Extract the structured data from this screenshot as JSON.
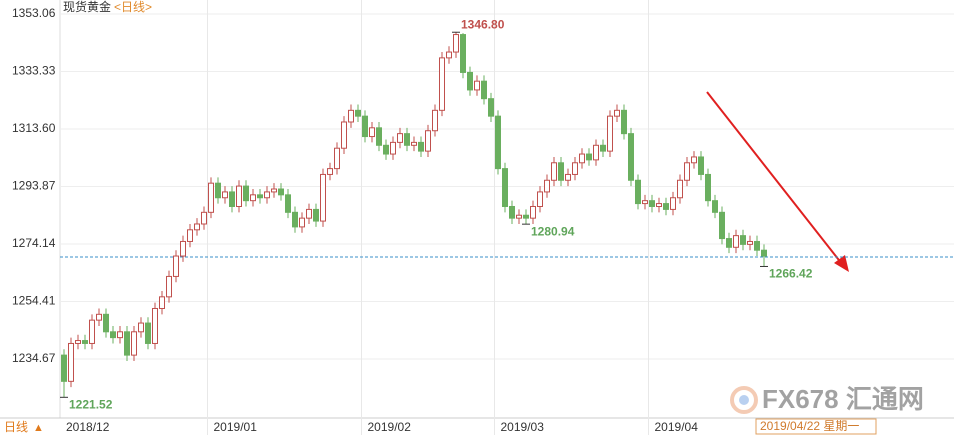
{
  "chart_data": {
    "type": "candlestick",
    "title": "现货黄金",
    "subtitle": "<日线>",
    "period_label": "日线",
    "period_icon": "▲",
    "watermark": "FX678 汇通网",
    "cursor_label": "2019/04/22 星期一",
    "categories": [
      "2018/12",
      null,
      null,
      null,
      null,
      null,
      null,
      null,
      null,
      null,
      null,
      null,
      null,
      null,
      null,
      null,
      null,
      null,
      null,
      null,
      null,
      "2019/01",
      null,
      null,
      null,
      null,
      null,
      null,
      null,
      null,
      null,
      null,
      null,
      null,
      null,
      null,
      null,
      null,
      null,
      null,
      null,
      null,
      null,
      "2019/02",
      null,
      null,
      null,
      null,
      null,
      null,
      null,
      null,
      null,
      null,
      null,
      null,
      null,
      null,
      null,
      null,
      null,
      null,
      "2019/03",
      null,
      null,
      null,
      null,
      null,
      null,
      null,
      null,
      null,
      null,
      null,
      null,
      null,
      null,
      null,
      null,
      null,
      null,
      null,
      null,
      null,
      "2019/04",
      null,
      null,
      null,
      null,
      null,
      null,
      null,
      null,
      null,
      null,
      null,
      null,
      null,
      null,
      null,
      null
    ],
    "open": [
      1236,
      1227,
      1240,
      1241,
      1240,
      1248,
      1250,
      1244,
      1242,
      1244,
      1236,
      1244,
      1247,
      1240,
      1252,
      1256,
      1263,
      1270,
      1275,
      1279,
      1281,
      1285,
      1295,
      1290,
      1292,
      1287,
      1294,
      1289,
      1291,
      1290,
      1292,
      1293,
      1291,
      1285,
      1280,
      1283,
      1286,
      1282,
      1298,
      1300,
      1307,
      1316,
      1320,
      1318,
      1311,
      1314,
      1308,
      1305,
      1309,
      1312,
      1308,
      1309,
      1306,
      1313,
      1320,
      1338,
      1340,
      1346,
      1333,
      1327,
      1330,
      1324,
      1318,
      1300,
      1287,
      1283,
      1284,
      1283,
      1287,
      1292,
      1296,
      1302,
      1296,
      1298,
      1302,
      1305,
      1303,
      1308,
      1306,
      1318,
      1320,
      1312,
      1296,
      1288,
      1289,
      1287,
      1288,
      1286,
      1290,
      1296,
      1302,
      1304,
      1298,
      1289,
      1285,
      1276,
      1273,
      1277,
      1274,
      1275,
      1272
    ],
    "high": [
      1238,
      1242,
      1243,
      1243,
      1250,
      1252,
      1252,
      1246,
      1246,
      1246,
      1246,
      1249,
      1249,
      1254,
      1258,
      1265,
      1272,
      1277,
      1281,
      1283,
      1287,
      1297,
      1297,
      1294,
      1294,
      1296,
      1296,
      1293,
      1293,
      1294,
      1295,
      1295,
      1293,
      1287,
      1285,
      1288,
      1288,
      1300,
      1302,
      1309,
      1318,
      1322,
      1322,
      1320,
      1316,
      1316,
      1310,
      1311,
      1314,
      1314,
      1311,
      1311,
      1315,
      1322,
      1340,
      1342,
      1346.8,
      1346.5,
      1335,
      1332,
      1332,
      1326,
      1320,
      1302,
      1289,
      1286,
      1286,
      1289,
      1294,
      1298,
      1304,
      1304,
      1300,
      1304,
      1307,
      1307,
      1310,
      1310,
      1320,
      1322,
      1322,
      1314,
      1298,
      1291,
      1291,
      1290,
      1290,
      1292,
      1298,
      1304,
      1306,
      1306,
      1300,
      1291,
      1287,
      1278,
      1279,
      1279,
      1277,
      1277,
      1274
    ],
    "low": [
      1221.52,
      1225,
      1238,
      1238,
      1238,
      1246,
      1242,
      1240,
      1240,
      1234,
      1234,
      1242,
      1238,
      1238,
      1250,
      1254,
      1261,
      1268,
      1273,
      1277,
      1279,
      1283,
      1288,
      1288,
      1285,
      1285,
      1287,
      1287,
      1288,
      1288,
      1290,
      1289,
      1283,
      1278,
      1278,
      1281,
      1280,
      1280,
      1296,
      1298,
      1305,
      1314,
      1316,
      1309,
      1309,
      1306,
      1303,
      1303,
      1307,
      1306,
      1306,
      1304,
      1304,
      1311,
      1318,
      1336,
      1338,
      1331,
      1325,
      1325,
      1322,
      1316,
      1298,
      1285,
      1281,
      1281,
      1280.94,
      1281,
      1285,
      1290,
      1294,
      1294,
      1294,
      1296,
      1300,
      1301,
      1301,
      1304,
      1304,
      1316,
      1310,
      1294,
      1286,
      1286,
      1285,
      1285,
      1284,
      1284,
      1288,
      1294,
      1300,
      1296,
      1287,
      1283,
      1274,
      1271,
      1271,
      1272,
      1272,
      1270,
      1266.42
    ],
    "close": [
      1227,
      1240,
      1241,
      1240,
      1248,
      1250,
      1244,
      1242,
      1244,
      1236,
      1244,
      1247,
      1240,
      1252,
      1256,
      1263,
      1270,
      1275,
      1279,
      1281,
      1285,
      1295,
      1290,
      1292,
      1287,
      1294,
      1289,
      1291,
      1290,
      1292,
      1293,
      1291,
      1285,
      1280,
      1283,
      1286,
      1282,
      1298,
      1300,
      1307,
      1316,
      1320,
      1318,
      1311,
      1314,
      1308,
      1305,
      1309,
      1312,
      1308,
      1309,
      1306,
      1313,
      1320,
      1338,
      1340,
      1346,
      1333,
      1327,
      1330,
      1324,
      1318,
      1300,
      1287,
      1283,
      1284,
      1283,
      1287,
      1292,
      1296,
      1302,
      1296,
      1298,
      1302,
      1305,
      1303,
      1308,
      1306,
      1318,
      1320,
      1312,
      1296,
      1288,
      1289,
      1287,
      1288,
      1286,
      1290,
      1296,
      1302,
      1304,
      1298,
      1289,
      1285,
      1276,
      1273,
      1277,
      1274,
      1275,
      1272,
      1270
    ],
    "up_color": "#c0504d",
    "down_color": "#6aaf5f",
    "ylim": [
      1214.42,
      1357.86
    ],
    "yticks": [
      1353.06,
      1333.33,
      {
        "value": 1313.6,
        "label": "1313.60"
      },
      1293.87,
      1274.14,
      1254.41,
      1234.67
    ],
    "reference_line": 1269.67,
    "annotations": [
      {
        "value": 1346.8,
        "label": "1346.80",
        "color": "#c0504d"
      },
      {
        "value": 1221.52,
        "label": "1221.52",
        "color": "#5fa55a"
      },
      {
        "value": 1280.94,
        "label": "1280.94",
        "color": "#5fa55a"
      },
      {
        "value": 1266.42,
        "label": "1266.42",
        "color": "#5fa55a"
      }
    ],
    "grid": true
  }
}
